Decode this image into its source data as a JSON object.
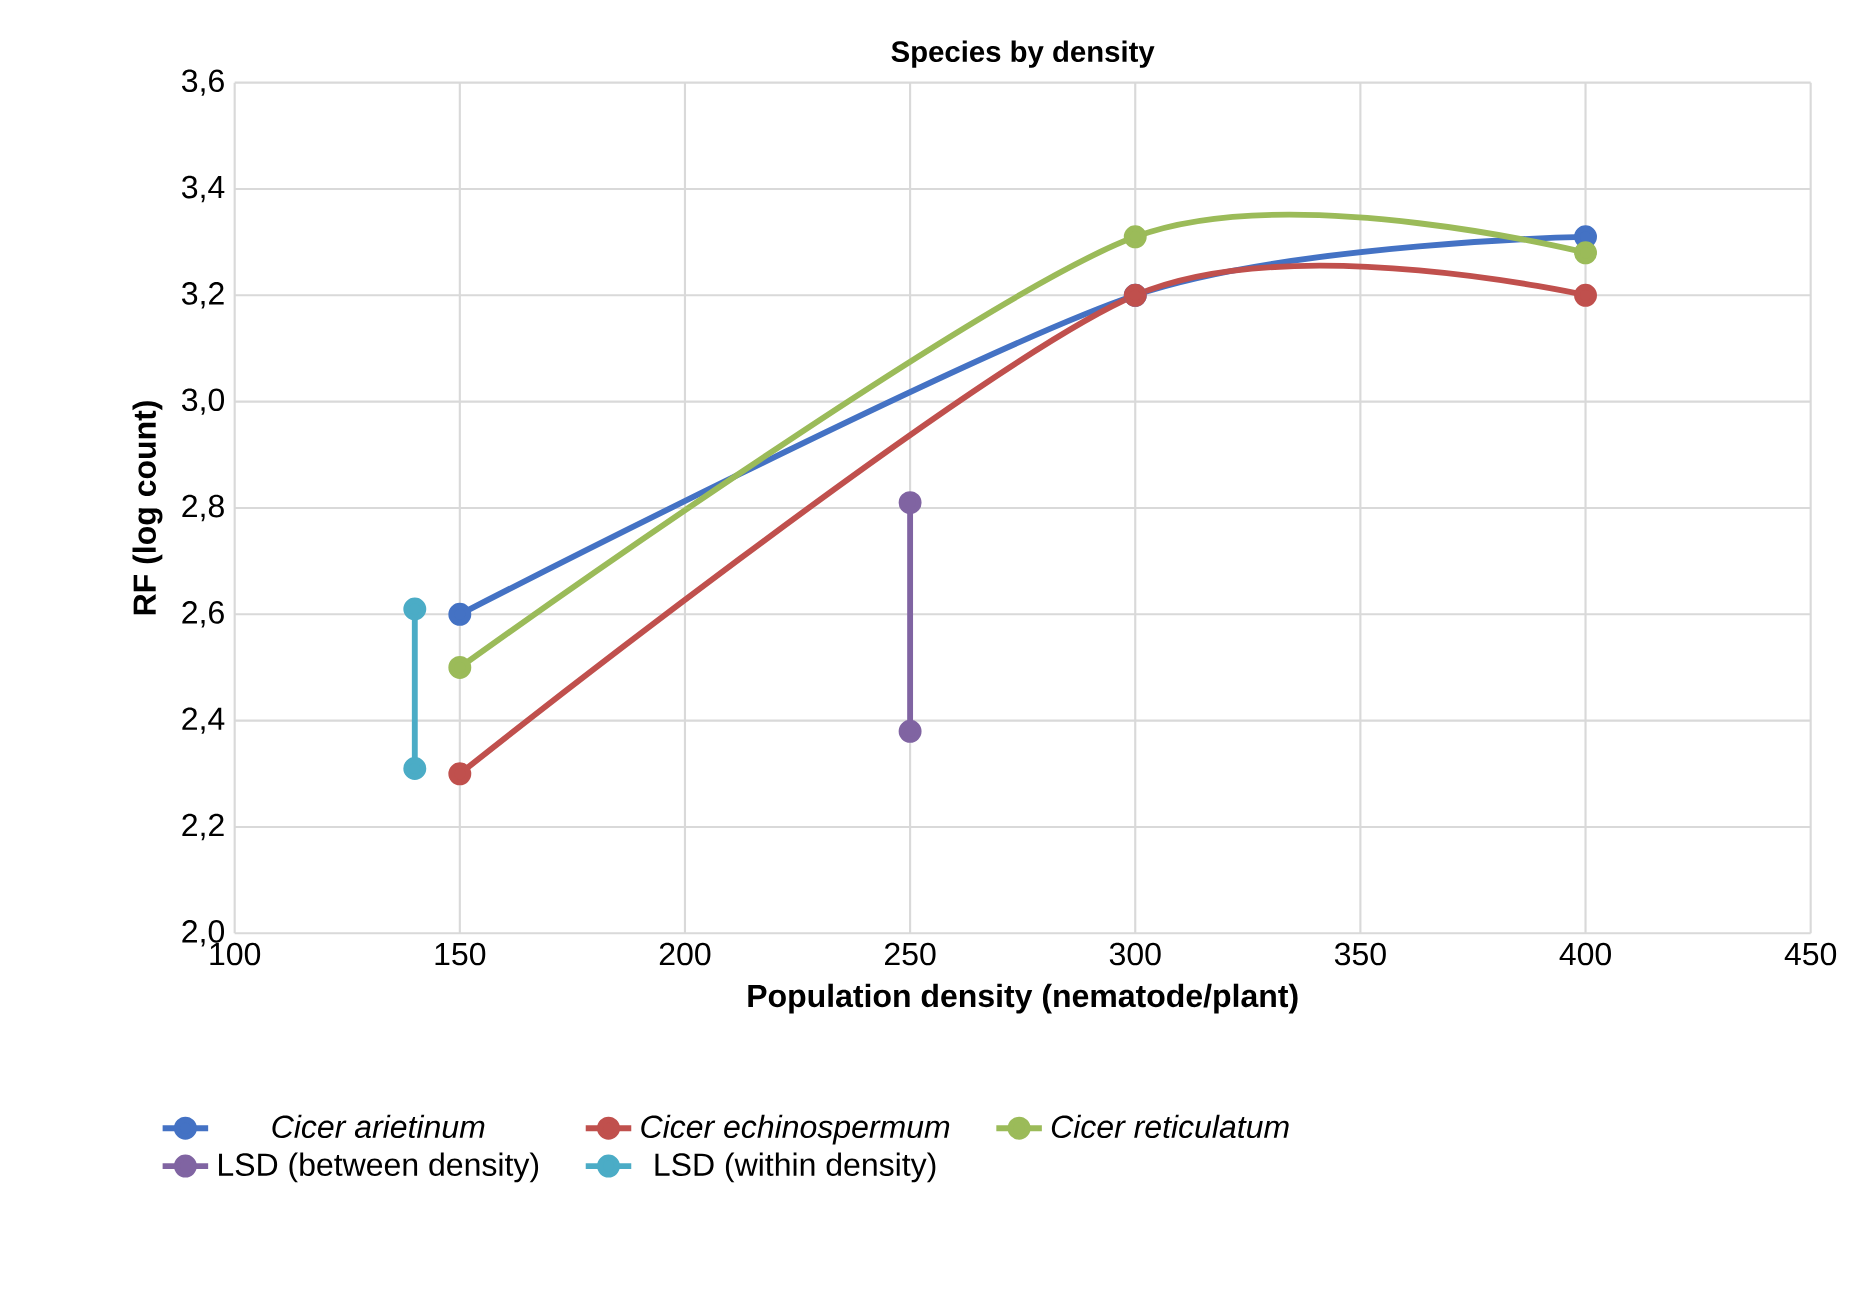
{
  "chart_data": {
    "type": "line",
    "title": "Species by density",
    "xlabel": "Population density (nematode/plant)",
    "ylabel": "RF (log count)",
    "xlim": [
      100,
      450
    ],
    "xticks": [
      100,
      150,
      200,
      250,
      300,
      350,
      400,
      450
    ],
    "ylim": [
      2.0,
      3.6
    ],
    "yticks": [
      {
        "value": 2.0,
        "label": "2,0"
      },
      {
        "value": 2.2,
        "label": "2,2"
      },
      {
        "value": 2.4,
        "label": "2,4"
      },
      {
        "value": 2.6,
        "label": "2,6"
      },
      {
        "value": 2.8,
        "label": "2,8"
      },
      {
        "value": 3.0,
        "label": "3,0"
      },
      {
        "value": 3.2,
        "label": "3,2"
      },
      {
        "value": 3.4,
        "label": "3,4"
      },
      {
        "value": 3.6,
        "label": "3,6"
      }
    ],
    "grid": true,
    "legend": "bottom",
    "marker": "circle",
    "line_style": "solid",
    "series": [
      {
        "name": "*Cicer arietinum*",
        "color": "#4472c4",
        "x": [
          150,
          300,
          400
        ],
        "values": [
          2.6,
          3.2,
          3.31
        ]
      },
      {
        "name": "*Cicer echinospermum*",
        "color": "#c0504d",
        "x": [
          150,
          300,
          400
        ],
        "values": [
          2.3,
          3.2,
          3.2
        ]
      },
      {
        "name": "*Cicer reticulatum*",
        "color": "#9bbb59",
        "x": [
          150,
          300,
          400
        ],
        "values": [
          2.5,
          3.31,
          3.28
        ]
      },
      {
        "name": "LSD (between density)",
        "color": "#8064a2",
        "x": [
          250,
          250
        ],
        "values": [
          2.38,
          2.81
        ]
      },
      {
        "name": "LSD (within density)",
        "color": "#4bacc6",
        "x": [
          140,
          140
        ],
        "values": [
          2.31,
          2.61
        ]
      }
    ]
  }
}
